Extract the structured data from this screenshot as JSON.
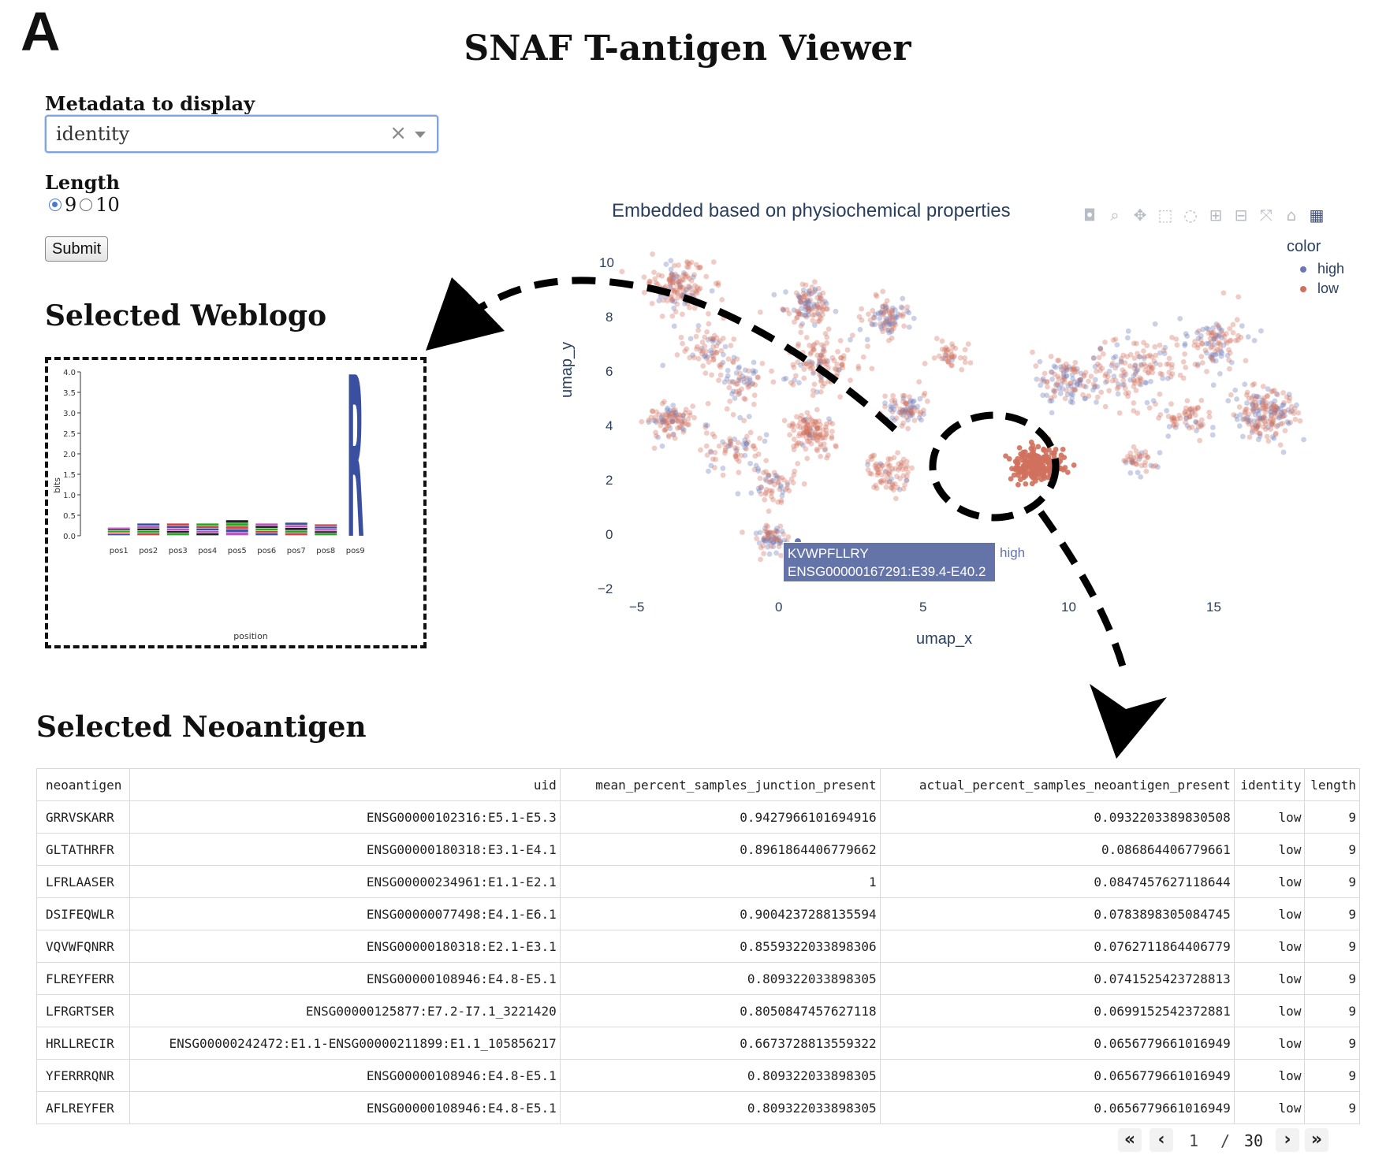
{
  "figure": {
    "panel_letter": "A"
  },
  "app": {
    "title": "SNAF T-antigen Viewer"
  },
  "controls": {
    "metadata_label": "Metadata to display",
    "metadata_value": "identity",
    "length_label": "Length",
    "length_options": [
      "9",
      "10"
    ],
    "length_selected": "9",
    "submit_label": "Submit"
  },
  "weblogo": {
    "heading": "Selected Weblogo",
    "ylabel": "bits",
    "xlabel": "position",
    "yticks": [
      "0.0",
      "0.5",
      "1.0",
      "1.5",
      "2.0",
      "2.5",
      "3.0",
      "3.5",
      "4.0"
    ],
    "positions": [
      "pos1",
      "pos2",
      "pos3",
      "pos4",
      "pos5",
      "pos6",
      "pos7",
      "pos8",
      "pos9"
    ],
    "column_heights_bits": [
      0.2,
      0.3,
      0.3,
      0.3,
      0.38,
      0.3,
      0.32,
      0.28,
      4.2
    ],
    "dominant_letter": "R",
    "dominant_color": "#3b4fa0"
  },
  "scatter": {
    "title": "Embedded based on physiochemical properties",
    "xlabel": "umap_x",
    "ylabel": "umap_y",
    "xticks": [
      "−5",
      "0",
      "5",
      "10",
      "15"
    ],
    "yticks": [
      "10",
      "8",
      "6",
      "4",
      "2",
      "0",
      "−2"
    ],
    "legend_title": "color",
    "legend": [
      {
        "label": "high",
        "color": "#6b78b8"
      },
      {
        "label": "low",
        "color": "#d0705c"
      }
    ],
    "tooltip": {
      "line1": "KVWPFLLRY",
      "line2": "ENSG00000167291:E39.4-E40.2",
      "tag": "high"
    },
    "modebar_icons": [
      "camera-icon",
      "zoom-icon",
      "pan-icon",
      "box-select-icon",
      "lasso-icon",
      "zoom-in-icon",
      "zoom-out-icon",
      "autoscale-icon",
      "home-icon",
      "plotly-logo-icon"
    ]
  },
  "chart_data": {
    "type": "scatter",
    "title": "Embedded based on physiochemical properties",
    "xlabel": "umap_x",
    "ylabel": "umap_y",
    "xlim": [
      -5,
      15.8
    ],
    "ylim": [
      -2.2,
      10.5
    ],
    "legend_title": "color",
    "series": [
      {
        "name": "high",
        "color": "#6b78b8"
      },
      {
        "name": "low",
        "color": "#d0705c"
      }
    ],
    "clusters": [
      {
        "x": -3.5,
        "y": 9.2,
        "spread": 0.8,
        "n": 150,
        "high_frac": 0.2
      },
      {
        "x": -2.5,
        "y": 6.8,
        "spread": 0.7,
        "n": 70,
        "high_frac": 0.2
      },
      {
        "x": -3.8,
        "y": 4.0,
        "spread": 0.6,
        "n": 100,
        "high_frac": 0.3
      },
      {
        "x": 0.5,
        "y": 8.5,
        "spread": 0.6,
        "n": 110,
        "high_frac": 0.35
      },
      {
        "x": 0.8,
        "y": 6.2,
        "spread": 1.0,
        "n": 120,
        "high_frac": 0.2
      },
      {
        "x": 0.6,
        "y": 3.6,
        "spread": 0.6,
        "n": 120,
        "high_frac": 0.05
      },
      {
        "x": -1.5,
        "y": 5.5,
        "spread": 0.7,
        "n": 60,
        "high_frac": 0.4
      },
      {
        "x": -1.8,
        "y": 3.0,
        "spread": 0.8,
        "n": 70,
        "high_frac": 0.3
      },
      {
        "x": -0.5,
        "y": 1.5,
        "spread": 0.6,
        "n": 60,
        "high_frac": 0.25
      },
      {
        "x": -0.6,
        "y": -0.5,
        "spread": 0.45,
        "n": 70,
        "high_frac": 0.5
      },
      {
        "x": 3.0,
        "y": 8.0,
        "spread": 0.6,
        "n": 90,
        "high_frac": 0.4
      },
      {
        "x": 3.5,
        "y": 4.5,
        "spread": 0.5,
        "n": 80,
        "high_frac": 0.35
      },
      {
        "x": 3.0,
        "y": 2.0,
        "spread": 0.6,
        "n": 80,
        "high_frac": 0.1
      },
      {
        "x": 4.8,
        "y": 6.5,
        "spread": 0.4,
        "n": 40,
        "high_frac": 0.1
      },
      {
        "x": 7.5,
        "y": 2.3,
        "spread": 0.6,
        "n": 200,
        "high_frac": 0.0
      },
      {
        "x": 8.5,
        "y": 5.5,
        "spread": 0.9,
        "n": 120,
        "high_frac": 0.5
      },
      {
        "x": 10.5,
        "y": 6.0,
        "spread": 1.0,
        "n": 140,
        "high_frac": 0.25
      },
      {
        "x": 10.5,
        "y": 2.5,
        "spread": 0.5,
        "n": 40,
        "high_frac": 0.2
      },
      {
        "x": 13.0,
        "y": 7.0,
        "spread": 0.9,
        "n": 110,
        "high_frac": 0.4
      },
      {
        "x": 14.5,
        "y": 4.3,
        "spread": 0.8,
        "n": 190,
        "high_frac": 0.35
      },
      {
        "x": 12.0,
        "y": 4.2,
        "spread": 0.6,
        "n": 60,
        "high_frac": 0.2
      }
    ],
    "highlighted_point": {
      "label": "KVWPFLLRY",
      "uid": "ENSG00000167291:E39.4-E40.2",
      "group": "high",
      "x": 0.2,
      "y": -0.6
    }
  },
  "neoantigen": {
    "heading": "Selected Neoantigen",
    "columns": [
      "neoantigen",
      "uid",
      "mean_percent_samples_junction_present",
      "actual_percent_samples_neoantigen_present",
      "identity",
      "length"
    ],
    "rows": [
      [
        "GRRVSKARR",
        "ENSG00000102316:E5.1-E5.3",
        "0.9427966101694916",
        "0.0932203389830508",
        "low",
        "9"
      ],
      [
        "GLTATHRFR",
        "ENSG00000180318:E3.1-E4.1",
        "0.8961864406779662",
        "0.086864406779661",
        "low",
        "9"
      ],
      [
        "LFRLAASER",
        "ENSG00000234961:E1.1-E2.1",
        "1",
        "0.0847457627118644",
        "low",
        "9"
      ],
      [
        "DSIFEQWLR",
        "ENSG00000077498:E4.1-E6.1",
        "0.9004237288135594",
        "0.0783898305084745",
        "low",
        "9"
      ],
      [
        "VQVWFQNRR",
        "ENSG00000180318:E2.1-E3.1",
        "0.8559322033898306",
        "0.0762711864406779",
        "low",
        "9"
      ],
      [
        "FLREYFERR",
        "ENSG00000108946:E4.8-E5.1",
        "0.809322033898305",
        "0.0741525423728813",
        "low",
        "9"
      ],
      [
        "LFRGRTSER",
        "ENSG00000125877:E7.2-I7.1_3221420",
        "0.8050847457627118",
        "0.0699152542372881",
        "low",
        "9"
      ],
      [
        "HRLLRECIR",
        "ENSG00000242472:E1.1-ENSG00000211899:E1.1_105856217",
        "0.6673728813559322",
        "0.0656779661016949",
        "low",
        "9"
      ],
      [
        "YFERRRQNR",
        "ENSG00000108946:E4.8-E5.1",
        "0.809322033898305",
        "0.0656779661016949",
        "low",
        "9"
      ],
      [
        "AFLREYFER",
        "ENSG00000108946:E4.8-E5.1",
        "0.809322033898305",
        "0.0656779661016949",
        "low",
        "9"
      ]
    ]
  },
  "pagination": {
    "current_page": "1",
    "separator": "/",
    "total_pages": "30",
    "first_icon": "«",
    "prev_icon": "‹",
    "next_icon": "›",
    "last_icon": "»"
  }
}
